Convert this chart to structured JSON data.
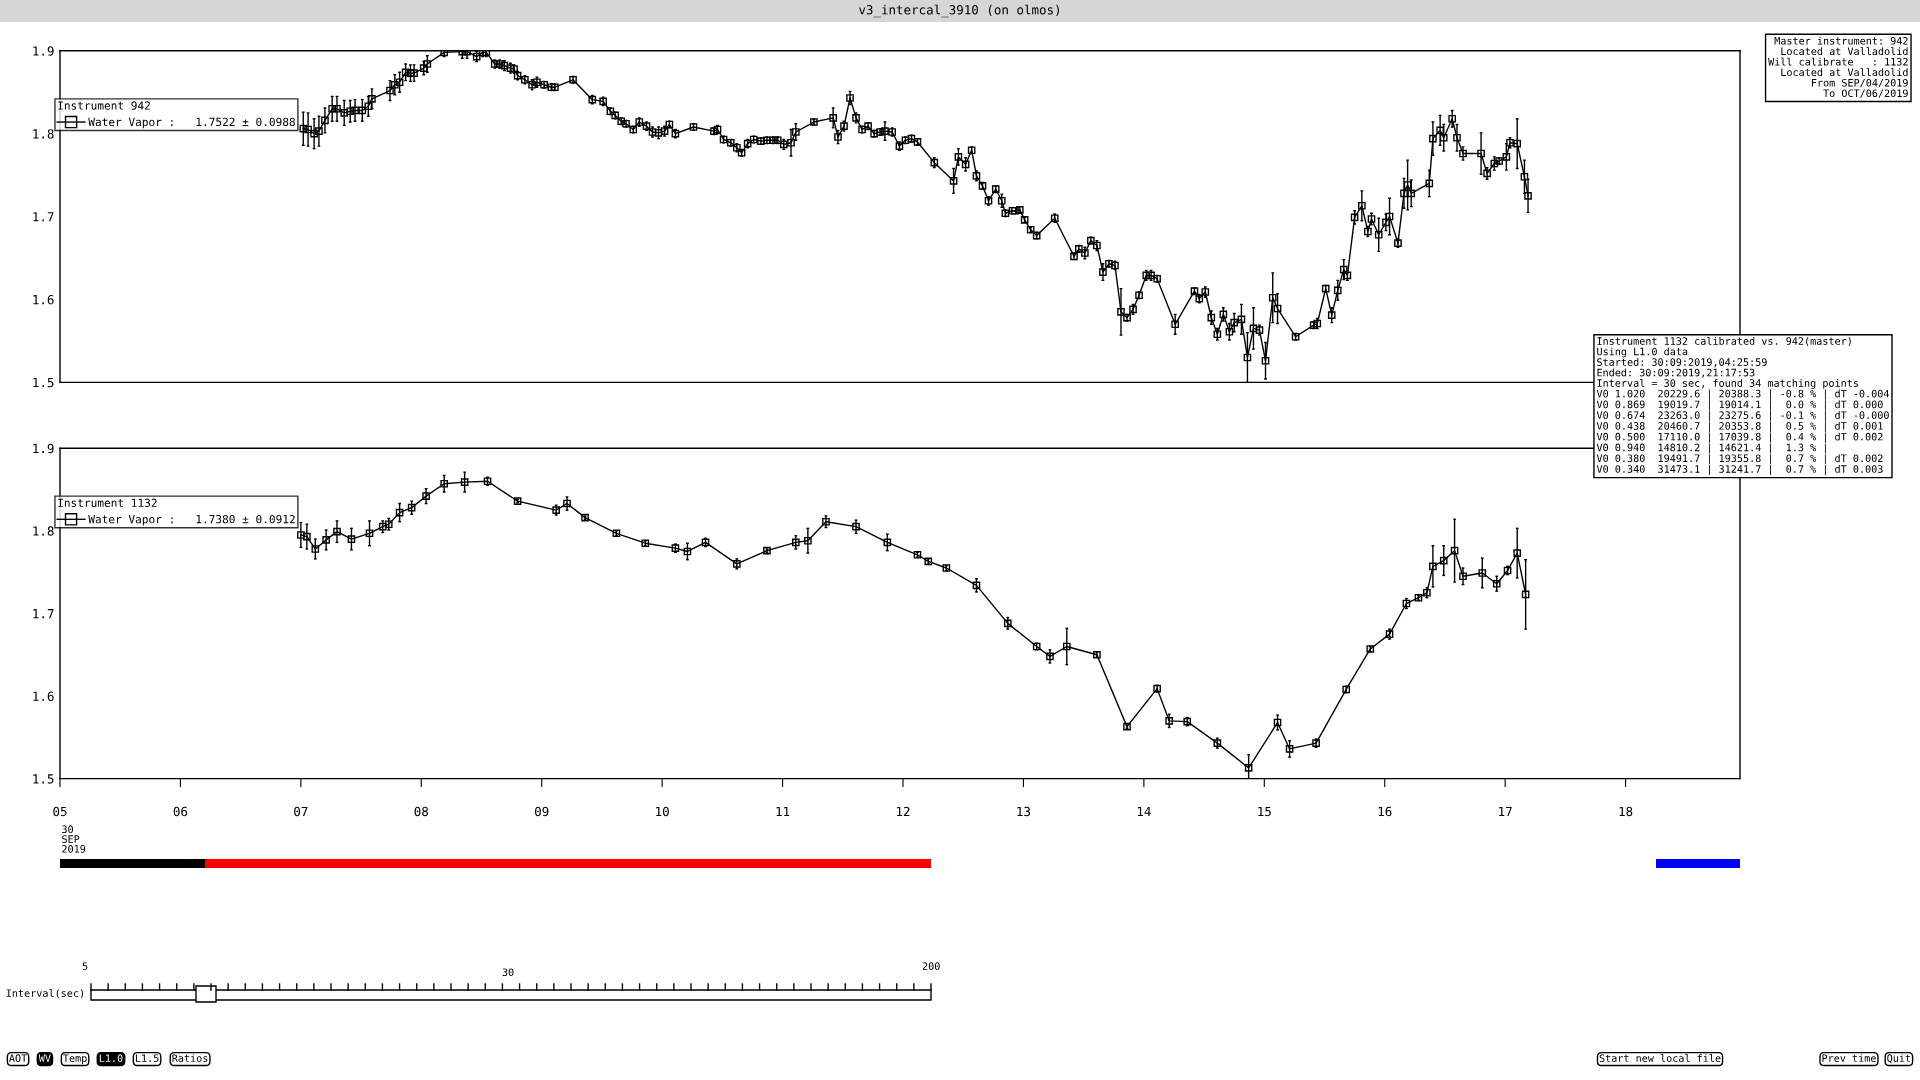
{
  "chart_data": [
    {
      "type": "line",
      "title": "v3_intercal_3910 (on olmos)",
      "legend_title": "Instrument 942",
      "legend": "top left",
      "marker": "square",
      "line_style": "solid",
      "tick_labels": "y",
      "xlim": [
        5.0,
        18.95
      ],
      "ylim": [
        1.5,
        1.9
      ],
      "yticks": [
        1.5,
        1.6,
        1.7,
        1.8,
        1.9
      ],
      "series": [
        {
          "name": "Water Vapor :   1.7522 ± 0.0988",
          "color": "#000000",
          "x": [
            7.02,
            7.06,
            7.11,
            7.15,
            7.2,
            7.26,
            7.3,
            7.36,
            7.41,
            7.45,
            7.51,
            7.56,
            7.59,
            7.74,
            7.78,
            7.82,
            7.87,
            7.91,
            7.94,
            8.02,
            8.05,
            8.19,
            8.34,
            8.38,
            8.46,
            8.51,
            8.54,
            8.61,
            8.65,
            8.69,
            8.74,
            8.77,
            8.8,
            8.86,
            8.92,
            8.96,
            9.02,
            9.08,
            9.11,
            9.26,
            9.42,
            9.51,
            9.57,
            9.61,
            9.66,
            9.7,
            9.76,
            9.81,
            9.87,
            9.92,
            9.97,
            10.02,
            10.06,
            10.11,
            10.26,
            10.43,
            10.46,
            10.51,
            10.57,
            10.62,
            10.66,
            10.71,
            10.76,
            10.82,
            10.87,
            10.92,
            10.96,
            11.01,
            11.07,
            11.11,
            11.26,
            11.42,
            11.46,
            11.51,
            11.56,
            11.61,
            11.66,
            11.71,
            11.76,
            11.81,
            11.85,
            11.91,
            11.97,
            12.02,
            12.07,
            12.12,
            12.26,
            12.42,
            12.46,
            12.52,
            12.57,
            12.61,
            12.66,
            12.71,
            12.77,
            12.82,
            12.85,
            12.91,
            12.93,
            12.97,
            13.01,
            13.06,
            13.11,
            13.26,
            13.42,
            13.46,
            13.51,
            13.56,
            13.61,
            13.66,
            13.71,
            13.76,
            13.81,
            13.86,
            13.91,
            13.96,
            14.02,
            14.06,
            14.11,
            14.26,
            14.42,
            14.46,
            14.51,
            14.56,
            14.61,
            14.66,
            14.71,
            14.75,
            14.81,
            14.86,
            14.91,
            14.96,
            15.01,
            15.07,
            15.11,
            15.26,
            15.41,
            15.44,
            15.51,
            15.56,
            15.61,
            15.66,
            15.69,
            15.75,
            15.81,
            15.86,
            15.89,
            15.95,
            16.01,
            16.04,
            16.11,
            16.16,
            16.19,
            16.22,
            16.37,
            16.4,
            16.46,
            16.49,
            16.56,
            16.6,
            16.65,
            16.8,
            16.85,
            16.91,
            16.95,
            17.01,
            17.04,
            17.1,
            17.16,
            17.19
          ],
          "values": [
            1.806,
            1.805,
            1.8,
            1.803,
            1.816,
            1.83,
            1.83,
            1.825,
            1.827,
            1.828,
            1.828,
            1.833,
            1.842,
            1.852,
            1.859,
            1.862,
            1.874,
            1.873,
            1.873,
            1.879,
            1.884,
            1.898,
            1.899,
            1.899,
            1.893,
            1.898,
            1.898,
            1.884,
            1.884,
            1.882,
            1.879,
            1.878,
            1.87,
            1.865,
            1.859,
            1.862,
            1.859,
            1.856,
            1.856,
            1.865,
            1.841,
            1.839,
            1.827,
            1.822,
            1.815,
            1.812,
            1.805,
            1.814,
            1.809,
            1.802,
            1.801,
            1.803,
            1.811,
            1.8,
            1.808,
            1.803,
            1.805,
            1.793,
            1.789,
            1.783,
            1.777,
            1.788,
            1.793,
            1.791,
            1.792,
            1.792,
            1.792,
            1.787,
            1.789,
            1.802,
            1.814,
            1.819,
            1.796,
            1.809,
            1.843,
            1.819,
            1.805,
            1.809,
            1.8,
            1.802,
            1.803,
            1.802,
            1.785,
            1.792,
            1.794,
            1.79,
            1.765,
            1.743,
            1.772,
            1.763,
            1.78,
            1.749,
            1.737,
            1.719,
            1.733,
            1.719,
            1.704,
            1.707,
            1.707,
            1.708,
            1.696,
            1.684,
            1.677,
            1.698,
            1.652,
            1.661,
            1.656,
            1.671,
            1.665,
            1.633,
            1.643,
            1.641,
            1.585,
            1.578,
            1.588,
            1.605,
            1.629,
            1.629,
            1.625,
            1.57,
            1.61,
            1.601,
            1.609,
            1.578,
            1.558,
            1.582,
            1.561,
            1.572,
            1.576,
            1.53,
            1.565,
            1.563,
            1.526,
            1.602,
            1.589,
            1.555,
            1.569,
            1.571,
            1.613,
            1.581,
            1.611,
            1.636,
            1.629,
            1.699,
            1.713,
            1.682,
            1.697,
            1.678,
            1.693,
            1.7,
            1.668,
            1.728,
            1.738,
            1.728,
            1.74,
            1.794,
            1.804,
            1.795,
            1.818,
            1.795,
            1.776,
            1.776,
            1.752,
            1.764,
            1.767,
            1.772,
            1.789,
            1.788,
            1.748,
            1.725
          ],
          "errors": [
            0.02,
            0.02,
            0.018,
            0.018,
            0.015,
            0.015,
            0.015,
            0.015,
            0.013,
            0.013,
            0.013,
            0.012,
            0.012,
            0.012,
            0.012,
            0.012,
            0.01,
            0.01,
            0.01,
            0.008,
            0.01,
            0.005,
            0.008,
            0.008,
            0.006,
            0.005,
            0.005,
            0.005,
            0.005,
            0.006,
            0.006,
            0.005,
            0.005,
            0.005,
            0.006,
            0.006,
            0.004,
            0.004,
            0.004,
            0.004,
            0.005,
            0.005,
            0.004,
            0.004,
            0.004,
            0.004,
            0.004,
            0.005,
            0.005,
            0.006,
            0.007,
            0.006,
            0.004,
            0.005,
            0.004,
            0.004,
            0.005,
            0.004,
            0.004,
            0.005,
            0.004,
            0.005,
            0.004,
            0.004,
            0.004,
            0.004,
            0.004,
            0.006,
            0.016,
            0.01,
            0.003,
            0.012,
            0.008,
            0.006,
            0.008,
            0.006,
            0.004,
            0.004,
            0.004,
            0.004,
            0.011,
            0.005,
            0.005,
            0.004,
            0.004,
            0.004,
            0.006,
            0.015,
            0.01,
            0.008,
            0.004,
            0.006,
            0.004,
            0.005,
            0.004,
            0.008,
            0.004,
            null,
            null,
            0.004,
            0.003,
            0.003,
            0.004,
            0.005,
            0.004,
            0.004,
            0.007,
            0.004,
            0.006,
            0.01,
            0.004,
            0.005,
            0.028,
            0.004,
            0.006,
            0.004,
            0.006,
            0.006,
            0.004,
            0.012,
            0.004,
            0.005,
            0.006,
            0.008,
            0.007,
            0.008,
            0.01,
            0.011,
            0.018,
            0.03,
            0.025,
            0.006,
            0.022,
            0.03,
            0.018,
            0.004,
            0.004,
            0.006,
            0.004,
            0.009,
            0.012,
            0.012,
            0.006,
            0.008,
            0.018,
            0.006,
            0.007,
            0.02,
            0.01,
            0.022,
            0.005,
            0.018,
            0.03,
            0.016,
            0.016,
            0.02,
            0.018,
            0.016,
            0.01,
            0.016,
            0.008,
            0.025,
            0.007,
            0.008,
            0.004,
            0.016,
            0.006,
            0.03,
            0.02,
            0.02
          ]
        }
      ],
      "annotations": [
        "Master instrument: 942\nLocated at Valladolid\nWill calibrate   : 1132\nLocated at Valladolid\nFrom SEP/04/2019\nTo OCT/06/2019"
      ]
    },
    {
      "type": "line",
      "legend_title": "Instrument 1132",
      "legend": "top left",
      "marker": "square",
      "line_style": "solid",
      "xlim": [
        5.0,
        18.95
      ],
      "xticks": [
        {
          "value": 5,
          "label": "05"
        },
        {
          "value": 6,
          "label": "06"
        },
        {
          "value": 7,
          "label": "07"
        },
        {
          "value": 8,
          "label": "08"
        },
        {
          "value": 9,
          "label": "09"
        },
        {
          "value": 10,
          "label": "10"
        },
        {
          "value": 11,
          "label": "11"
        },
        {
          "value": 12,
          "label": "12"
        },
        {
          "value": 13,
          "label": "13"
        },
        {
          "value": 14,
          "label": "14"
        },
        {
          "value": 15,
          "label": "15"
        },
        {
          "value": 16,
          "label": "16"
        },
        {
          "value": 17,
          "label": "17"
        },
        {
          "value": 18,
          "label": "18"
        }
      ],
      "ylim": [
        1.5,
        1.9
      ],
      "yticks": [
        1.5,
        1.6,
        1.7,
        1.8,
        1.9
      ],
      "series": [
        {
          "name": "Water Vapor :   1.7380 ± 0.0912",
          "color": "#000000",
          "x": [
            7.0,
            7.05,
            7.12,
            7.21,
            7.3,
            7.42,
            7.57,
            7.68,
            7.73,
            7.82,
            7.92,
            8.04,
            8.19,
            8.36,
            8.55,
            8.8,
            9.12,
            9.21,
            9.36,
            9.62,
            9.86,
            10.11,
            10.21,
            10.36,
            10.62,
            10.87,
            11.11,
            11.21,
            11.36,
            11.61,
            11.87,
            12.12,
            12.21,
            12.36,
            12.61,
            12.87,
            13.11,
            13.22,
            13.36,
            13.61,
            13.86,
            14.11,
            14.21,
            14.36,
            14.61,
            14.87,
            15.11,
            15.21,
            15.43,
            15.68,
            15.88,
            16.04,
            16.18,
            16.28,
            16.35,
            16.4,
            16.49,
            16.58,
            16.65,
            16.81,
            16.93,
            17.02,
            17.1,
            17.17
          ],
          "values": [
            1.795,
            1.793,
            1.778,
            1.789,
            1.799,
            1.79,
            1.797,
            1.805,
            1.808,
            1.822,
            1.828,
            1.842,
            1.857,
            1.859,
            1.86,
            1.836,
            1.825,
            1.833,
            1.816,
            1.797,
            1.785,
            1.779,
            1.775,
            1.786,
            1.76,
            1.776,
            1.786,
            1.788,
            1.811,
            1.805,
            1.786,
            1.771,
            1.763,
            1.755,
            1.734,
            1.688,
            1.66,
            1.648,
            1.66,
            1.65,
            1.563,
            1.609,
            1.57,
            1.569,
            1.543,
            1.513,
            1.568,
            1.536,
            1.543,
            1.608,
            1.657,
            1.675,
            1.712,
            1.719,
            1.725,
            1.757,
            1.764,
            1.776,
            1.745,
            1.749,
            1.736,
            1.752,
            1.773,
            1.723
          ],
          "errors": [
            0.015,
            0.015,
            0.012,
            0.012,
            0.013,
            0.013,
            0.015,
            0.007,
            0.007,
            0.011,
            0.008,
            0.009,
            0.01,
            0.012,
            0.005,
            0.002,
            0.006,
            0.008,
            0.002,
            0.003,
            0.003,
            0.005,
            0.01,
            0.005,
            0.006,
            0.002,
            0.008,
            0.015,
            0.007,
            0.008,
            0.01,
            0.003,
            0.003,
            0.003,
            0.008,
            0.007,
            0.004,
            0.008,
            0.022,
            0.003,
            0.002,
            0.004,
            0.008,
            0.005,
            0.006,
            0.016,
            0.009,
            0.01,
            0.005,
            0.004,
            0.003,
            0.006,
            0.006,
            0.003,
            0.006,
            0.025,
            0.018,
            0.038,
            0.01,
            0.018,
            0.009,
            0.005,
            0.03,
            0.042
          ]
        }
      ],
      "annotations": [
        "Instrument 1132 calibrated vs. 942(master)\nUsing L1.0 data\nStarted: 30:09:2019,04:25:59\nEnded: 30:09:2019,21:17:53\nInterval = 30 sec, found 34 matching points\nV0 1.020  20229.6 | 20388.3 | -0.8 % | dT -0.004\nV0 0.869  19019.7 | 19014.1 |  0.0 % | dT 0.000\nV0 0.674  23263.0 | 23275.6 | -0.1 % | dT -0.000\nV0 0.438  20460.7 | 20353.8 |  0.5 % | dT 0.001\nV0 0.500  17110.0 | 17039.8 |  0.4 % | dT 0.002\nV0 0.940  14810.2 | 14621.4 |  1.3 % |\nV0 0.380  19491.7 | 19355.8 |  0.7 % | dT 0.002\nV0 0.340  31473.1 | 31241.7 |  0.7 % | dT 0.003",
        "30\nSEP\n2019",
        "Interval(sec)",
        "5",
        "30",
        "200",
        "AOT",
        "WV",
        "Temp",
        "L1.0",
        "L1.5",
        "Ratios",
        "Start new local file",
        "Prev time",
        "Quit"
      ]
    }
  ]
}
